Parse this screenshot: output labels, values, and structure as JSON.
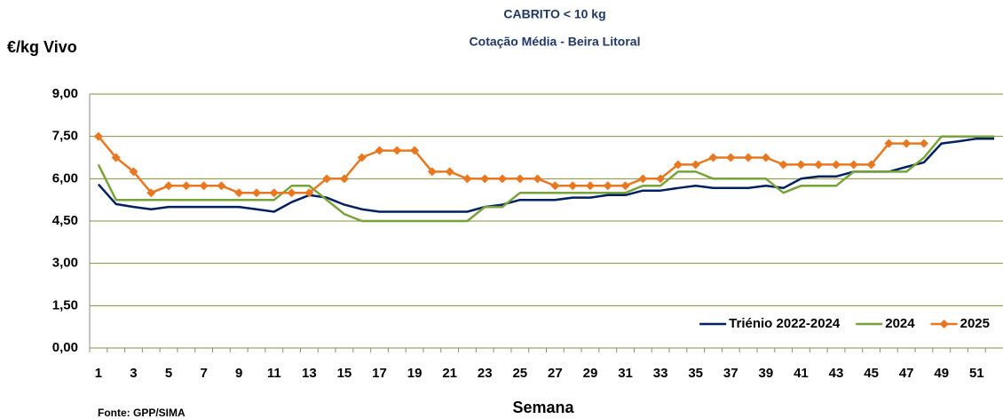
{
  "chart_data": {
    "type": "line",
    "title": [
      "CABRITO < 10 kg",
      "Cotação Média - Beira Litoral"
    ],
    "y_label": "€/kg Vivo",
    "x_label": "Semana",
    "source": "Fonte: GPP/SIMA",
    "categories": [
      "1",
      null,
      "3",
      null,
      "5",
      null,
      "7",
      null,
      "9",
      null,
      "11",
      null,
      "13",
      null,
      "15",
      null,
      "17",
      null,
      "19",
      null,
      "21",
      null,
      "23",
      null,
      "25",
      null,
      "27",
      null,
      "29",
      null,
      "31",
      null,
      "33",
      null,
      "35",
      null,
      "37",
      null,
      "39",
      null,
      "41",
      null,
      "43",
      null,
      "45",
      null,
      "47",
      null,
      "49",
      null,
      "51",
      null
    ],
    "series": [
      {
        "name": "Triénio 2022-2024",
        "color": "#002060",
        "values": [
          5.8,
          5.1,
          5.0,
          4.92,
          5.0,
          5.0,
          5.0,
          5.0,
          5.0,
          4.92,
          4.83,
          5.17,
          5.42,
          5.33,
          5.08,
          4.92,
          4.83,
          4.83,
          4.83,
          4.83,
          4.83,
          4.83,
          5.0,
          5.08,
          5.25,
          5.25,
          5.25,
          5.33,
          5.33,
          5.42,
          5.42,
          5.58,
          5.58,
          5.67,
          5.75,
          5.67,
          5.67,
          5.67,
          5.75,
          5.67,
          6.0,
          6.08,
          6.08,
          6.25,
          6.25,
          6.25,
          6.42,
          6.58,
          7.25,
          7.33,
          7.42,
          7.42
        ]
      },
      {
        "name": "2024",
        "color": "#77a33a",
        "values": [
          6.5,
          5.25,
          5.25,
          5.25,
          5.25,
          5.25,
          5.25,
          5.25,
          5.25,
          5.25,
          5.25,
          5.75,
          5.75,
          5.25,
          4.75,
          4.5,
          4.5,
          4.5,
          4.5,
          4.5,
          4.5,
          4.5,
          5.0,
          5.0,
          5.5,
          5.5,
          5.5,
          5.5,
          5.5,
          5.5,
          5.5,
          5.75,
          5.75,
          6.25,
          6.25,
          6.0,
          6.0,
          6.0,
          6.0,
          5.5,
          5.75,
          5.75,
          5.75,
          6.25,
          6.25,
          6.25,
          6.25,
          6.75,
          7.5,
          7.5,
          7.5,
          7.5
        ]
      },
      {
        "name": "2025",
        "color": "#e87722",
        "marker": "diamond",
        "values": [
          7.5,
          6.75,
          6.25,
          5.5,
          5.75,
          5.75,
          5.75,
          5.75,
          5.5,
          5.5,
          5.5,
          5.5,
          5.5,
          6.0,
          6.0,
          6.75,
          7.0,
          7.0,
          7.0,
          6.25,
          6.25,
          6.0,
          6.0,
          6.0,
          6.0,
          6.0,
          5.75,
          5.75,
          5.75,
          5.75,
          5.75,
          6.0,
          6.0,
          6.5,
          6.5,
          6.75,
          6.75,
          6.75,
          6.75,
          6.5,
          6.5,
          6.5,
          6.5,
          6.5,
          6.5,
          7.25,
          7.25,
          7.25,
          null,
          null,
          null,
          null
        ]
      }
    ],
    "ylim": [
      0,
      9
    ],
    "yticks": [
      {
        "value": 0,
        "label": "0,00"
      },
      {
        "value": 1.5,
        "label": "1,50"
      },
      {
        "value": 3,
        "label": "3,00"
      },
      {
        "value": 4.5,
        "label": "4,50"
      },
      {
        "value": 6,
        "label": "6,00"
      },
      {
        "value": 7.5,
        "label": "7,50"
      },
      {
        "value": 9,
        "label": "9,00"
      }
    ],
    "grid": true,
    "grid_color": "#8c8c3c",
    "legend": "bottom-right"
  }
}
